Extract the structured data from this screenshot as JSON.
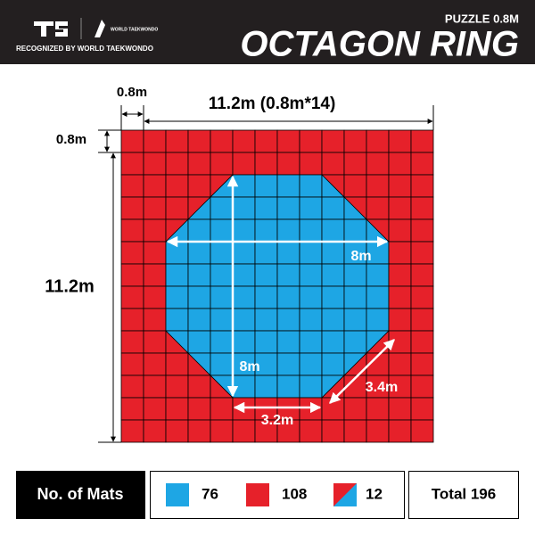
{
  "header": {
    "logo_text": "WORLD TAEKWONDO",
    "recognized": "RECOGNIZED BY WORLD TAEKWONDO",
    "product": "PUZZLE 0.8M",
    "title": "OCTAGON RING"
  },
  "dimensions": {
    "top_small": "0.8m",
    "top_total": "11.2m (0.8m*14)",
    "left_small": "0.8m",
    "left_total": "11.2m",
    "octagon_width": "8m",
    "octagon_height": "8m",
    "diagonal_side": "3.4m",
    "straight_side": "3.2m"
  },
  "legend": {
    "label": "No. of Mats",
    "blue": 76,
    "red": 108,
    "mixed": 12,
    "total": "Total 196"
  }
}
